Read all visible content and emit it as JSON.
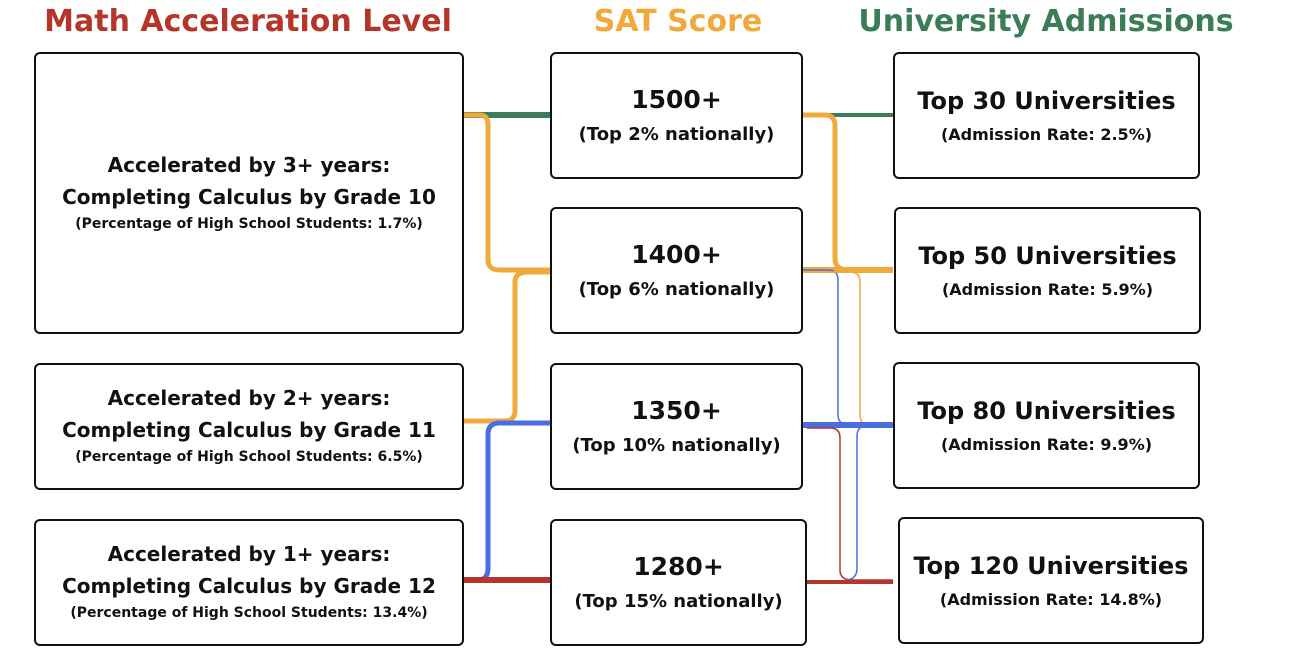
{
  "columns": [
    {
      "title": "Math Acceleration Level",
      "nodes": [
        {
          "heading": "Accelerated by 3+ years:",
          "subheading": "Completing Calculus by Grade 10",
          "note": "(Percentage of High School Students: 1.7%)"
        },
        {
          "heading": "Accelerated by 2+ years:",
          "subheading": "Completing Calculus by Grade 11",
          "note": "(Percentage of High School Students: 6.5%)"
        },
        {
          "heading": "Accelerated by 1+ years:",
          "subheading": "Completing Calculus by Grade 12",
          "note": "(Percentage of High School Students: 13.4%)"
        }
      ]
    },
    {
      "title": "SAT Score",
      "nodes": [
        {
          "heading": "1500+",
          "note": "(Top 2% nationally)"
        },
        {
          "heading": "1400+",
          "note": "(Top 6% nationally)"
        },
        {
          "heading": "1350+",
          "note": "(Top 10% nationally)"
        },
        {
          "heading": "1280+",
          "note": "(Top 15% nationally)"
        }
      ]
    },
    {
      "title": "University Admissions",
      "nodes": [
        {
          "heading": "Top 30 Universities",
          "note": "(Admission Rate: 2.5%)"
        },
        {
          "heading": "Top 50 Universities",
          "note": "(Admission Rate: 5.9%)"
        },
        {
          "heading": "Top 80 Universities",
          "note": "(Admission Rate: 9.9%)"
        },
        {
          "heading": "Top 120 Universities",
          "note": "(Admission Rate: 14.8%)"
        }
      ]
    }
  ]
}
